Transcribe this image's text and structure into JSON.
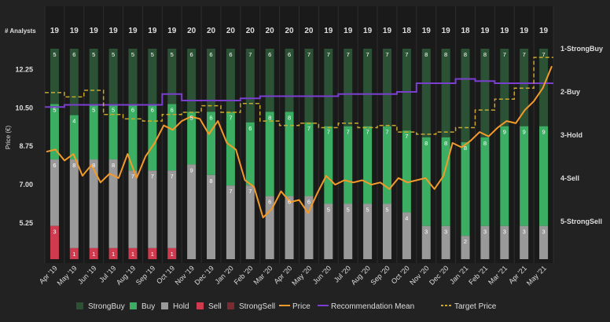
{
  "chart_data": {
    "type": "bar",
    "analysts_label": "# Analysts",
    "ylabel": "Price (€)",
    "y_ticks": [
      "12.25",
      "10.50",
      "8.75",
      "7.00",
      "5.25"
    ],
    "y_tick_values": [
      12.25,
      10.5,
      8.75,
      7.0,
      5.25
    ],
    "price_range": [
      3.6,
      13.2
    ],
    "right_axis_labels": [
      "1-StrongBuy",
      "2-Buy",
      "3-Hold",
      "4-Sell",
      "5-StrongSell"
    ],
    "categories": [
      "Apr '19",
      "May '19",
      "Jun '19",
      "Jul '19",
      "Aug '19",
      "Sep '19",
      "Oct '19",
      "Nov '19",
      "Dec '19",
      "Jan '20",
      "Feb '20",
      "Mar '20",
      "Apr '20",
      "May '20",
      "Jun '20",
      "Jul '20",
      "Aug '20",
      "Sep '20",
      "Oct '20",
      "Nov '20",
      "Dec '20",
      "Jan '21",
      "Feb '21",
      "Mar '21",
      "Apr '21",
      "May '21"
    ],
    "analysts": [
      19,
      19,
      19,
      19,
      19,
      19,
      19,
      20,
      20,
      20,
      20,
      20,
      20,
      20,
      19,
      19,
      19,
      19,
      18,
      19,
      19,
      18,
      19,
      19,
      19,
      19
    ],
    "series": [
      {
        "name": "StrongBuy",
        "color": "#2c5235",
        "values": [
          5,
          6,
          5,
          5,
          5,
          5,
          5,
          6,
          6,
          6,
          7,
          6,
          6,
          7,
          7,
          7,
          7,
          7,
          7,
          8,
          8,
          8,
          8,
          7,
          7,
          7
        ]
      },
      {
        "name": "Buy",
        "color": "#3cae63",
        "values": [
          5,
          4,
          5,
          5,
          6,
          6,
          6,
          5,
          6,
          7,
          6,
          8,
          8,
          7,
          7,
          7,
          7,
          7,
          7,
          8,
          8,
          8,
          8,
          9,
          9,
          9
        ]
      },
      {
        "name": "Hold",
        "color": "#999999",
        "values": [
          6,
          8,
          8,
          8,
          7,
          7,
          7,
          9,
          8,
          7,
          7,
          6,
          6,
          6,
          5,
          5,
          5,
          5,
          4,
          3,
          3,
          2,
          3,
          3,
          3,
          3
        ]
      },
      {
        "name": "Sell",
        "color": "#cf3a4e",
        "values": [
          3,
          1,
          1,
          1,
          1,
          1,
          1,
          0,
          0,
          0,
          0,
          0,
          0,
          0,
          0,
          0,
          0,
          0,
          0,
          0,
          0,
          0,
          0,
          0,
          0,
          0
        ]
      },
      {
        "name": "StrongSell",
        "color": "#7c2b33",
        "values": [
          0,
          0,
          0,
          0,
          0,
          0,
          0,
          0,
          0,
          0,
          0,
          0,
          0,
          0,
          0,
          0,
          0,
          0,
          0,
          0,
          0,
          0,
          0,
          0,
          0,
          0
        ]
      }
    ],
    "price": [
      8.5,
      8.6,
      8.1,
      8.4,
      7.4,
      7.9,
      7.1,
      7.5,
      7.3,
      8.4,
      7.3,
      8.3,
      8.9,
      9.7,
      9.5,
      9.9,
      10.1,
      10.0,
      9.3,
      9.9,
      8.9,
      8.6,
      7.2,
      6.9,
      5.5,
      5.9,
      6.7,
      6.2,
      6.3,
      5.7,
      6.6,
      7.4,
      7.0,
      7.2,
      7.1,
      7.2,
      7.0,
      7.1,
      6.8,
      7.3,
      7.1,
      7.2,
      7.3,
      6.8,
      7.4,
      8.9,
      8.7,
      9.0,
      9.4,
      9.2,
      9.6,
      9.9,
      9.8,
      10.4,
      10.8,
      11.4,
      12.4
    ],
    "recommendation_mean": [
      2.35,
      2.3,
      2.3,
      2.3,
      2.3,
      2.3,
      2.05,
      2.2,
      2.2,
      2.2,
      2.15,
      2.1,
      2.1,
      2.1,
      2.1,
      2.05,
      2.05,
      2.05,
      2.0,
      1.8,
      1.8,
      1.7,
      1.75,
      1.8,
      1.8,
      1.8
    ],
    "target_price": [
      11.2,
      11.0,
      11.3,
      10.2,
      10.0,
      9.9,
      10.2,
      10.3,
      10.6,
      10.3,
      10.7,
      9.9,
      9.7,
      9.8,
      9.6,
      9.8,
      9.6,
      9.7,
      9.4,
      9.3,
      9.4,
      9.6,
      10.4,
      10.9,
      11.4,
      12.8
    ],
    "legend": [
      "StrongBuy",
      "Buy",
      "Hold",
      "Sell",
      "StrongSell",
      "Price",
      "Recommendation Mean",
      "Target Price"
    ],
    "colors": {
      "background": "#222222",
      "strongbuy": "#2c5235",
      "buy": "#3cae63",
      "hold": "#999999",
      "sell": "#cf3a4e",
      "strongsell": "#7c2b33",
      "price": "#f39a2a",
      "recommendation_mean": "#7b3fd0",
      "target_price": "#c9a82a",
      "text": "#dddddd",
      "grid": "#2e2e2e"
    }
  }
}
